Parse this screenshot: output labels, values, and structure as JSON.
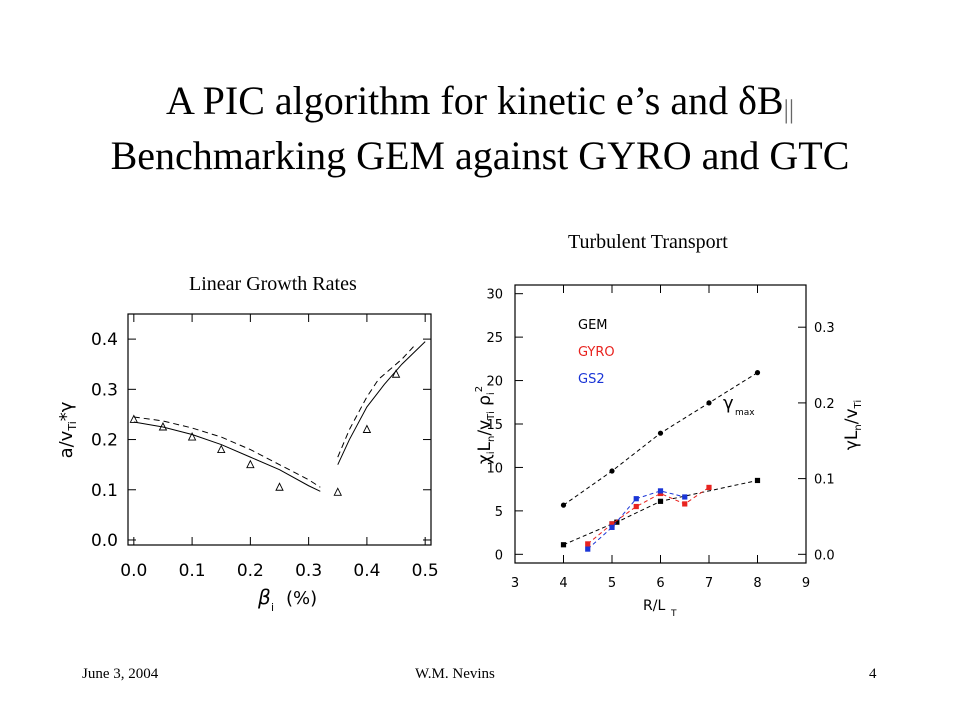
{
  "slide": {
    "title_line1": "A PIC algorithm for kinetic e’s and δB",
    "title_line1_sub": "||",
    "title_line2": "Benchmarking GEM against GYRO and GTC",
    "footer_date": "June 3, 2004",
    "footer_author": "W.M. Nevins",
    "footer_page": "4"
  },
  "chart_data": [
    {
      "type": "line",
      "title": "Linear Growth Rates",
      "xlabel": "β i (%)",
      "ylabel": "a/v Ti *γ",
      "xlim": [
        0.0,
        0.5
      ],
      "ylim": [
        0.0,
        0.45
      ],
      "x_ticks": [
        "0.0",
        "0.1",
        "0.2",
        "0.3",
        "0.4",
        "0.5"
      ],
      "y_ticks": [
        "0.0",
        "0.1",
        "0.2",
        "0.3",
        "0.4"
      ],
      "series": [
        {
          "style": "solid",
          "segments": [
            {
              "x": [
                0.0,
                0.05,
                0.1,
                0.15,
                0.2,
                0.25,
                0.3,
                0.32
              ],
              "y": [
                0.235,
                0.225,
                0.21,
                0.19,
                0.165,
                0.14,
                0.108,
                0.097
              ]
            },
            {
              "x": [
                0.35,
                0.37,
                0.4,
                0.43,
                0.46,
                0.5
              ],
              "y": [
                0.15,
                0.2,
                0.265,
                0.31,
                0.35,
                0.395
              ]
            }
          ]
        },
        {
          "style": "dashed",
          "segments": [
            {
              "x": [
                0.0,
                0.05,
                0.1,
                0.15,
                0.2,
                0.25,
                0.3,
                0.32
              ],
              "y": [
                0.245,
                0.237,
                0.223,
                0.205,
                0.18,
                0.15,
                0.12,
                0.105
              ]
            },
            {
              "x": [
                0.35,
                0.37,
                0.4,
                0.42,
                0.46,
                0.48
              ],
              "y": [
                0.165,
                0.22,
                0.285,
                0.32,
                0.36,
                0.385
              ]
            }
          ]
        },
        {
          "style": "triangles",
          "x": [
            0.0,
            0.05,
            0.1,
            0.15,
            0.2,
            0.25,
            0.35,
            0.4,
            0.45
          ],
          "y": [
            0.24,
            0.225,
            0.205,
            0.18,
            0.15,
            0.105,
            0.095,
            0.22,
            0.33
          ]
        }
      ]
    },
    {
      "type": "line",
      "title": "Turbulent Transport",
      "xlabel": "R/L T",
      "ylabel": "χ i L n /v Ti ρ i 2",
      "y2label": "γ L n /v Ti",
      "xlim": [
        3,
        9
      ],
      "ylim": [
        -1,
        30
      ],
      "y2lim": [
        0.0,
        0.35
      ],
      "x_ticks": [
        "3",
        "4",
        "5",
        "6",
        "7",
        "8",
        "9"
      ],
      "y_ticks": [
        "0",
        "5",
        "10",
        "15",
        "20",
        "25",
        "30"
      ],
      "y2_ticks": [
        "0.0",
        "0.1",
        "0.2",
        "0.3"
      ],
      "legend": [
        "GEM",
        "GYRO",
        "GS2"
      ],
      "annotation": "γ max",
      "colors": {
        "GEM": "#000000",
        "GYRO": "#e8231f",
        "GS2": "#1a35d6"
      },
      "series": [
        {
          "name": "GEM",
          "x": [
            4,
            5,
            5.1,
            6,
            8
          ],
          "y": [
            1.1,
            3.5,
            3.7,
            6.1,
            8.5
          ]
        },
        {
          "name": "GYRO",
          "x": [
            4.5,
            5,
            5.5,
            6,
            6.5,
            7
          ],
          "y": [
            1.2,
            3.5,
            5.5,
            7.0,
            5.8,
            7.7
          ]
        },
        {
          "name": "GS2",
          "x": [
            4.5,
            5,
            5.5,
            6,
            6.5
          ],
          "y": [
            0.6,
            3.1,
            6.4,
            7.3,
            6.6
          ]
        },
        {
          "name": "γ max",
          "x": [
            4,
            5,
            6,
            7,
            8
          ],
          "y": [
            0.065,
            0.11,
            0.16,
            0.2,
            0.24
          ]
        }
      ]
    }
  ]
}
